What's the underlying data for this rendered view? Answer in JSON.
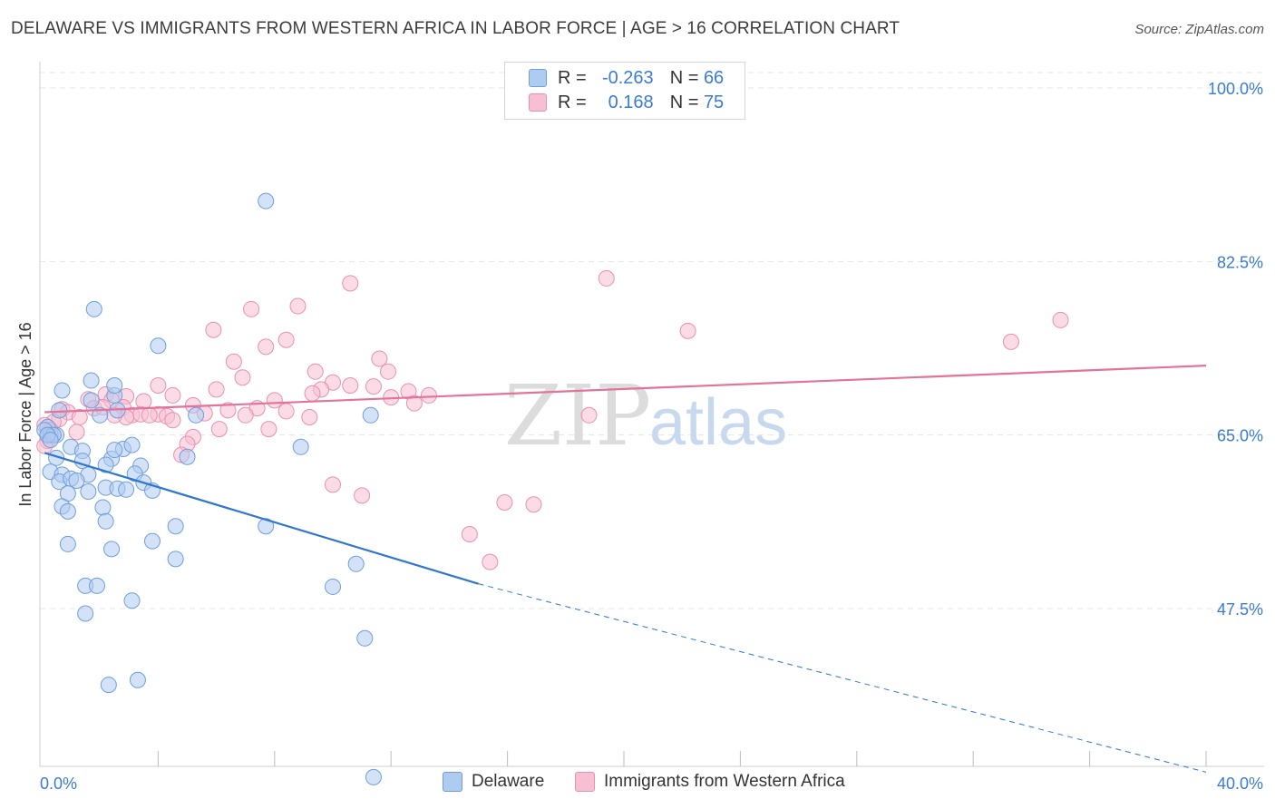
{
  "title": "DELAWARE VS IMMIGRANTS FROM WESTERN AFRICA IN LABOR FORCE | AGE > 16 CORRELATION CHART",
  "source": "Source: ZipAtlas.com",
  "watermark": {
    "zip": "ZIP",
    "atlas": "atlas"
  },
  "legend_top": {
    "rows": [
      {
        "r_label": "R =",
        "r_value": "-0.263",
        "n_label": "N =",
        "n_value": "66"
      },
      {
        "r_label": "R =",
        "r_value": "0.168",
        "n_label": "N =",
        "n_value": "75"
      }
    ]
  },
  "legend_bottom": [
    {
      "label": "Delaware"
    },
    {
      "label": "Immigrants from Western Africa"
    }
  ],
  "colors": {
    "blue_fill": "#aecbf0",
    "blue_stroke": "#6e9fdc",
    "blue_line": "#2e76cf",
    "pink_fill": "#f7c0d2",
    "pink_stroke": "#e990b0",
    "pink_line": "#e2739a",
    "tick_label": "#3a7bd5",
    "grid": "#e4e4e4"
  },
  "chart_data": {
    "type": "scatter",
    "title": "DELAWARE VS IMMIGRANTS FROM WESTERN AFRICA IN LABOR FORCE | AGE > 16 CORRELATION CHART",
    "xlabel": "",
    "ylabel": "In Labor Force | Age > 16",
    "xlim": [
      0,
      40
    ],
    "ylim": [
      30,
      102
    ],
    "x_tick_labels": [
      "0.0%",
      "40.0%"
    ],
    "y_ticks": [
      47.5,
      65.0,
      82.5,
      100.0
    ],
    "y_tick_labels": [
      "47.5%",
      "65.0%",
      "82.5%",
      "100.0%"
    ],
    "grid": true,
    "legend_position": "top-center",
    "series": [
      {
        "name": "Delaware",
        "r": -0.263,
        "n": 66,
        "trend": {
          "x0": 0.1,
          "y0": 63.2,
          "x1": 15.0,
          "y1": 50.0,
          "x_dash_end": 40.0,
          "y_dash_end": 31.0
        },
        "points": [
          [
            7.7,
            88.6
          ],
          [
            1.8,
            77.7
          ],
          [
            4.0,
            74.0
          ],
          [
            0.7,
            69.5
          ],
          [
            2.5,
            69.0
          ],
          [
            1.7,
            68.5
          ],
          [
            2.0,
            67.0
          ],
          [
            2.6,
            67.5
          ],
          [
            0.6,
            67.5
          ],
          [
            0.2,
            65.8
          ],
          [
            0.3,
            65.0
          ],
          [
            0.1,
            65.5
          ],
          [
            0.5,
            65.0
          ],
          [
            0.4,
            65.0
          ],
          [
            0.2,
            65.0
          ],
          [
            1.0,
            63.8
          ],
          [
            1.4,
            63.4
          ],
          [
            2.8,
            63.6
          ],
          [
            3.1,
            64.0
          ],
          [
            0.5,
            62.7
          ],
          [
            1.4,
            62.4
          ],
          [
            2.4,
            62.6
          ],
          [
            3.4,
            61.9
          ],
          [
            0.3,
            61.3
          ],
          [
            0.7,
            61.0
          ],
          [
            1.6,
            61.0
          ],
          [
            2.2,
            62.0
          ],
          [
            2.5,
            63.5
          ],
          [
            3.2,
            61.1
          ],
          [
            0.6,
            60.3
          ],
          [
            1.0,
            60.6
          ],
          [
            1.2,
            60.4
          ],
          [
            3.5,
            60.2
          ],
          [
            2.2,
            59.7
          ],
          [
            2.6,
            59.6
          ],
          [
            1.6,
            59.3
          ],
          [
            3.8,
            59.4
          ],
          [
            2.9,
            59.5
          ],
          [
            0.9,
            59.1
          ],
          [
            0.7,
            57.8
          ],
          [
            2.1,
            57.7
          ],
          [
            0.9,
            57.3
          ],
          [
            2.2,
            56.3
          ],
          [
            4.6,
            55.8
          ],
          [
            7.7,
            55.8
          ],
          [
            3.8,
            54.3
          ],
          [
            0.9,
            54.0
          ],
          [
            2.4,
            53.5
          ],
          [
            4.6,
            52.5
          ],
          [
            10.8,
            52.0
          ],
          [
            1.5,
            49.8
          ],
          [
            1.9,
            49.8
          ],
          [
            10.0,
            49.7
          ],
          [
            3.1,
            48.3
          ],
          [
            1.5,
            47.0
          ],
          [
            11.1,
            44.5
          ],
          [
            2.3,
            39.8
          ],
          [
            3.3,
            40.3
          ],
          [
            11.4,
            30.5
          ],
          [
            8.9,
            63.8
          ],
          [
            5.3,
            67.0
          ],
          [
            11.3,
            67.0
          ],
          [
            5.0,
            62.8
          ],
          [
            1.7,
            70.5
          ],
          [
            2.5,
            70.0
          ],
          [
            0.3,
            64.5
          ]
        ]
      },
      {
        "name": "Immigrants from Western Africa",
        "r": 0.168,
        "n": 75,
        "trend": {
          "x0": 0.1,
          "y0": 67.3,
          "x1": 40.0,
          "y1": 72.0
        },
        "points": [
          [
            19.4,
            80.8
          ],
          [
            10.6,
            80.3
          ],
          [
            8.8,
            78.0
          ],
          [
            7.2,
            77.7
          ],
          [
            22.2,
            75.5
          ],
          [
            5.9,
            75.6
          ],
          [
            8.4,
            74.6
          ],
          [
            7.7,
            73.9
          ],
          [
            35.0,
            76.6
          ],
          [
            33.3,
            74.4
          ],
          [
            11.6,
            72.7
          ],
          [
            6.6,
            72.4
          ],
          [
            9.4,
            71.4
          ],
          [
            11.9,
            71.4
          ],
          [
            6.9,
            70.8
          ],
          [
            10.0,
            70.3
          ],
          [
            4.0,
            70.0
          ],
          [
            6.0,
            69.6
          ],
          [
            9.6,
            69.6
          ],
          [
            10.6,
            70.0
          ],
          [
            11.4,
            69.9
          ],
          [
            9.3,
            69.2
          ],
          [
            12.6,
            69.4
          ],
          [
            13.3,
            69.0
          ],
          [
            4.5,
            69.0
          ],
          [
            2.9,
            68.9
          ],
          [
            2.2,
            69.1
          ],
          [
            2.4,
            68.5
          ],
          [
            8.0,
            68.5
          ],
          [
            3.5,
            68.4
          ],
          [
            5.2,
            68.0
          ],
          [
            12.0,
            68.8
          ],
          [
            12.8,
            68.2
          ],
          [
            1.6,
            68.6
          ],
          [
            1.8,
            67.7
          ],
          [
            2.1,
            67.8
          ],
          [
            2.8,
            67.8
          ],
          [
            7.4,
            67.7
          ],
          [
            8.4,
            67.4
          ],
          [
            6.4,
            67.5
          ],
          [
            0.7,
            67.6
          ],
          [
            0.9,
            67.3
          ],
          [
            3.1,
            67.0
          ],
          [
            3.4,
            67.1
          ],
          [
            4.0,
            67.1
          ],
          [
            4.3,
            66.9
          ],
          [
            5.6,
            67.2
          ],
          [
            7.0,
            67.0
          ],
          [
            2.9,
            66.8
          ],
          [
            3.7,
            67.0
          ],
          [
            9.2,
            66.8
          ],
          [
            1.3,
            66.8
          ],
          [
            0.6,
            66.6
          ],
          [
            0.4,
            66.3
          ],
          [
            0.1,
            66.0
          ],
          [
            0.3,
            65.5
          ],
          [
            4.5,
            66.5
          ],
          [
            6.1,
            65.6
          ],
          [
            7.8,
            65.6
          ],
          [
            18.8,
            67.0
          ],
          [
            1.2,
            65.3
          ],
          [
            0.2,
            64.9
          ],
          [
            0.4,
            65.0
          ],
          [
            5.2,
            64.8
          ],
          [
            5.0,
            64.1
          ],
          [
            4.8,
            63.0
          ],
          [
            10.0,
            60.0
          ],
          [
            11.0,
            58.9
          ],
          [
            15.9,
            58.2
          ],
          [
            16.9,
            58.0
          ],
          [
            14.7,
            55.0
          ],
          [
            15.4,
            52.2
          ],
          [
            0.2,
            64.4
          ],
          [
            0.1,
            63.9
          ],
          [
            2.5,
            67.0
          ]
        ]
      }
    ]
  }
}
